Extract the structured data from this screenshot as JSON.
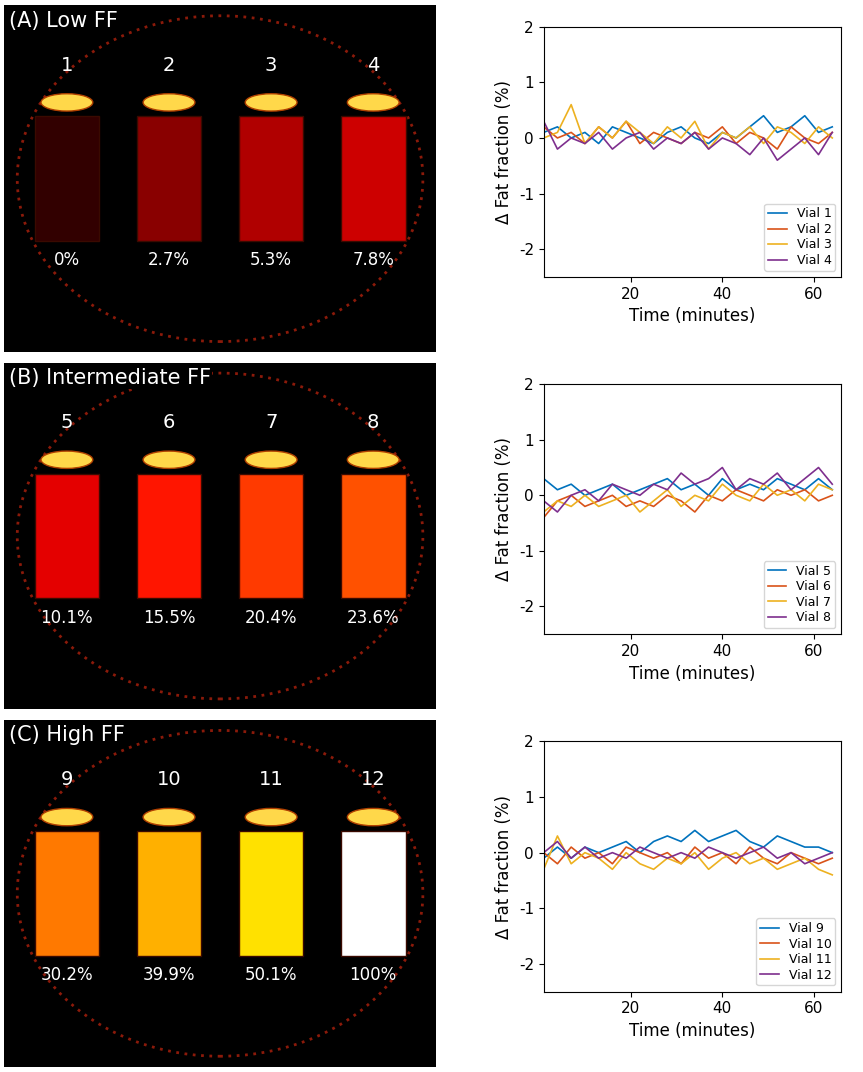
{
  "images": [
    {
      "label": "(A) Low FF",
      "vials": [
        {
          "number": 1,
          "ff": {
            "value": 0,
            "label": "0%"
          }
        },
        {
          "number": 2,
          "ff": {
            "value": 2.7,
            "label": "2.7%"
          }
        },
        {
          "number": 3,
          "ff": {
            "value": 5.3,
            "label": "5.3%"
          }
        },
        {
          "number": 4,
          "ff": {
            "value": 7.8,
            "label": "7.8%"
          }
        }
      ]
    },
    {
      "label": "(B) Intermediate FF",
      "vials": [
        {
          "number": 5,
          "ff": {
            "value": 10.1,
            "label": "10.1%"
          }
        },
        {
          "number": 6,
          "ff": {
            "value": 15.5,
            "label": "15.5%"
          }
        },
        {
          "number": 7,
          "ff": {
            "value": 20.4,
            "label": "20.4%"
          }
        },
        {
          "number": 8,
          "ff": {
            "value": 23.6,
            "label": "23.6%"
          }
        }
      ]
    },
    {
      "label": "(C) High FF",
      "vials": [
        {
          "number": 9,
          "ff": {
            "value": 30.2,
            "label": "30.2%"
          }
        },
        {
          "number": 10,
          "ff": {
            "value": 39.9,
            "label": "39.9%"
          }
        },
        {
          "number": 11,
          "ff": {
            "value": 50.1,
            "label": "50.1%"
          }
        },
        {
          "number": 12,
          "ff": {
            "value": 100,
            "label": "100%"
          }
        }
      ]
    }
  ],
  "chart_data": [
    {
      "type": "line",
      "xlabel": "Time (minutes)",
      "ylabel": "Δ Fat fraction (%)",
      "x": [
        1,
        4,
        7,
        10,
        13,
        16,
        19,
        22,
        25,
        28,
        31,
        34,
        37,
        40,
        43,
        46,
        49,
        52,
        55,
        58,
        61,
        64
      ],
      "xlim": [
        1,
        66
      ],
      "xticks": [
        20,
        40,
        60
      ],
      "ylim": [
        -2.5,
        2
      ],
      "yticks": [
        -2,
        -1,
        0,
        1,
        2
      ],
      "legend": "lower right",
      "series": [
        {
          "name": "Vial 1",
          "color": "#0072bd",
          "values": [
            0.1,
            0.2,
            0.0,
            0.1,
            -0.1,
            0.2,
            0.1,
            0.0,
            -0.1,
            0.1,
            0.2,
            0.0,
            -0.1,
            0.1,
            0.0,
            0.2,
            0.4,
            0.1,
            0.2,
            0.4,
            0.1,
            0.2
          ]
        },
        {
          "name": "Vial 2",
          "color": "#d95319",
          "values": [
            0.2,
            0.0,
            0.1,
            -0.1,
            0.2,
            0.0,
            0.3,
            -0.1,
            0.1,
            0.0,
            -0.1,
            0.1,
            0.0,
            0.2,
            -0.1,
            0.1,
            0.0,
            -0.2,
            0.2,
            0.0,
            -0.1,
            0.1
          ]
        },
        {
          "name": "Vial 3",
          "color": "#edb120",
          "values": [
            0.0,
            0.1,
            0.6,
            -0.1,
            0.2,
            0.0,
            0.3,
            0.1,
            -0.1,
            0.2,
            0.0,
            0.3,
            -0.2,
            0.1,
            0.0,
            0.2,
            -0.1,
            0.2,
            0.1,
            -0.1,
            0.2,
            0.0
          ]
        },
        {
          "name": "Vial 4",
          "color": "#7e2f8e",
          "values": [
            0.3,
            -0.2,
            0.0,
            -0.1,
            0.1,
            -0.2,
            0.0,
            0.1,
            -0.2,
            0.0,
            -0.1,
            0.1,
            -0.2,
            0.0,
            -0.1,
            -0.3,
            0.0,
            -0.4,
            -0.2,
            0.0,
            -0.3,
            0.1
          ]
        }
      ]
    },
    {
      "type": "line",
      "xlabel": "Time (minutes)",
      "ylabel": "Δ Fat fraction (%)",
      "x": [
        1,
        4,
        7,
        10,
        13,
        16,
        19,
        22,
        25,
        28,
        31,
        34,
        37,
        40,
        43,
        46,
        49,
        52,
        55,
        58,
        61,
        64
      ],
      "xlim": [
        1,
        66
      ],
      "xticks": [
        20,
        40,
        60
      ],
      "ylim": [
        -2.5,
        2
      ],
      "yticks": [
        -2,
        -1,
        0,
        1,
        2
      ],
      "legend": "lower right",
      "series": [
        {
          "name": "Vial 5",
          "color": "#0072bd",
          "values": [
            0.3,
            0.1,
            0.2,
            0.0,
            0.1,
            0.2,
            0.0,
            0.1,
            0.2,
            0.3,
            0.1,
            0.2,
            0.0,
            0.3,
            0.1,
            0.2,
            0.1,
            0.3,
            0.2,
            0.1,
            0.3,
            0.1
          ]
        },
        {
          "name": "Vial 6",
          "color": "#d95319",
          "values": [
            -0.4,
            -0.1,
            0.0,
            -0.2,
            -0.1,
            0.0,
            -0.2,
            -0.1,
            -0.2,
            0.0,
            -0.1,
            -0.3,
            0.0,
            -0.1,
            0.1,
            0.0,
            -0.1,
            0.1,
            0.0,
            0.1,
            -0.1,
            0.0
          ]
        },
        {
          "name": "Vial 7",
          "color": "#edb120",
          "values": [
            -0.3,
            -0.1,
            -0.2,
            0.0,
            -0.2,
            -0.1,
            0.0,
            -0.3,
            -0.1,
            0.1,
            -0.2,
            0.0,
            -0.1,
            0.2,
            0.0,
            -0.1,
            0.2,
            0.0,
            0.1,
            -0.1,
            0.2,
            0.1
          ]
        },
        {
          "name": "Vial 8",
          "color": "#7e2f8e",
          "values": [
            -0.1,
            -0.3,
            0.0,
            0.1,
            -0.1,
            0.2,
            0.1,
            0.0,
            0.2,
            0.1,
            0.4,
            0.2,
            0.3,
            0.5,
            0.1,
            0.3,
            0.2,
            0.4,
            0.1,
            0.3,
            0.5,
            0.2
          ]
        }
      ]
    },
    {
      "type": "line",
      "xlabel": "Time (minutes)",
      "ylabel": "Δ Fat fraction (%)",
      "x": [
        1,
        4,
        7,
        10,
        13,
        16,
        19,
        22,
        25,
        28,
        31,
        34,
        37,
        40,
        43,
        46,
        49,
        52,
        55,
        58,
        61,
        64
      ],
      "xlim": [
        1,
        66
      ],
      "xticks": [
        20,
        40,
        60
      ],
      "ylim": [
        -2.5,
        2
      ],
      "yticks": [
        -2,
        -1,
        0,
        1,
        2
      ],
      "legend": "lower right",
      "series": [
        {
          "name": "Vial 9",
          "color": "#0072bd",
          "values": [
            -0.1,
            0.1,
            -0.1,
            0.1,
            0.0,
            0.1,
            0.2,
            0.0,
            0.2,
            0.3,
            0.2,
            0.4,
            0.2,
            0.3,
            0.4,
            0.2,
            0.1,
            0.3,
            0.2,
            0.1,
            0.1,
            0.0
          ]
        },
        {
          "name": "Vial 10",
          "color": "#d95319",
          "values": [
            0.0,
            -0.2,
            0.1,
            -0.1,
            0.0,
            -0.2,
            0.1,
            0.0,
            -0.1,
            0.0,
            -0.2,
            0.1,
            -0.1,
            0.0,
            -0.2,
            0.1,
            -0.1,
            -0.2,
            0.0,
            -0.1,
            -0.2,
            -0.1
          ]
        },
        {
          "name": "Vial 11",
          "color": "#edb120",
          "values": [
            -0.3,
            0.3,
            -0.2,
            0.0,
            -0.1,
            -0.3,
            0.0,
            -0.2,
            -0.3,
            -0.1,
            -0.2,
            0.0,
            -0.3,
            -0.1,
            0.0,
            -0.2,
            -0.1,
            -0.3,
            -0.2,
            -0.1,
            -0.3,
            -0.4
          ]
        },
        {
          "name": "Vial 12",
          "color": "#7e2f8e",
          "values": [
            0.0,
            0.2,
            -0.1,
            0.1,
            -0.1,
            0.0,
            -0.1,
            0.1,
            0.0,
            -0.1,
            0.0,
            -0.1,
            0.1,
            0.0,
            -0.1,
            0.0,
            0.1,
            -0.1,
            0.0,
            -0.2,
            -0.1,
            0.0
          ]
        }
      ]
    }
  ]
}
